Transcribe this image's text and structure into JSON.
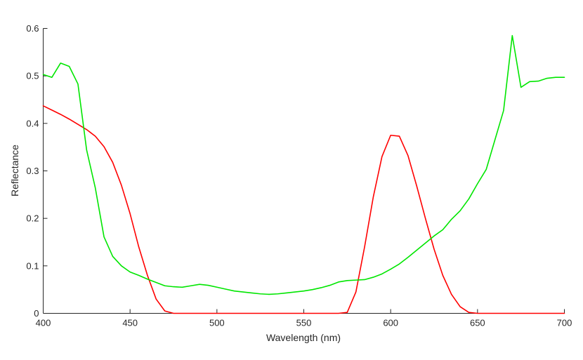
{
  "chart_data": {
    "type": "line",
    "title": "",
    "xlabel": "Wavelength (nm)",
    "ylabel": "Reflectance",
    "xlim": [
      400,
      700
    ],
    "ylim": [
      0,
      0.6
    ],
    "xticks": [
      400,
      450,
      500,
      550,
      600,
      650,
      700
    ],
    "yticks": [
      0,
      0.1,
      0.2,
      0.3,
      0.4,
      0.5,
      0.6
    ],
    "xtick_labels": [
      "400",
      "450",
      "500",
      "550",
      "600",
      "650",
      "700"
    ],
    "ytick_labels": [
      "0",
      "0.1",
      "0.2",
      "0.3",
      "0.4",
      "0.5",
      "0.6"
    ],
    "grid": false,
    "legend": "none",
    "x": [
      400,
      405,
      410,
      415,
      420,
      425,
      430,
      435,
      440,
      445,
      450,
      455,
      460,
      465,
      470,
      475,
      480,
      485,
      490,
      495,
      500,
      505,
      510,
      515,
      520,
      525,
      530,
      535,
      540,
      545,
      550,
      555,
      560,
      565,
      570,
      575,
      580,
      585,
      590,
      595,
      600,
      605,
      610,
      615,
      620,
      625,
      630,
      635,
      640,
      645,
      650,
      655,
      660,
      665,
      670,
      675,
      680,
      685,
      690,
      695,
      700
    ],
    "series": [
      {
        "color": "#ff0000",
        "values": [
          0.437,
          0.428,
          0.419,
          0.409,
          0.398,
          0.387,
          0.373,
          0.351,
          0.318,
          0.27,
          0.21,
          0.14,
          0.08,
          0.03,
          0.005,
          0,
          0,
          0,
          0,
          0,
          0,
          0,
          0,
          0,
          0,
          0,
          0,
          0,
          0,
          0,
          0,
          0,
          0,
          0,
          0,
          0.002,
          0.045,
          0.14,
          0.245,
          0.33,
          0.375,
          0.373,
          0.332,
          0.268,
          0.2,
          0.135,
          0.08,
          0.04,
          0.014,
          0.002,
          0,
          0,
          0,
          0,
          0,
          0,
          0,
          0,
          0,
          0,
          0
        ]
      },
      {
        "color": "#00e600",
        "values": [
          0.503,
          0.497,
          0.527,
          0.52,
          0.483,
          0.344,
          0.264,
          0.161,
          0.12,
          0.1,
          0.087,
          0.08,
          0.072,
          0.065,
          0.058,
          0.056,
          0.055,
          0.058,
          0.061,
          0.059,
          0.055,
          0.051,
          0.047,
          0.045,
          0.043,
          0.041,
          0.04,
          0.041,
          0.043,
          0.045,
          0.047,
          0.05,
          0.054,
          0.059,
          0.066,
          0.069,
          0.07,
          0.071,
          0.076,
          0.083,
          0.093,
          0.104,
          0.118,
          0.133,
          0.148,
          0.163,
          0.176,
          0.198,
          0.216,
          0.241,
          0.273,
          0.303,
          0.365,
          0.427,
          0.585,
          0.476,
          0.488,
          0.489,
          0.495,
          0.497,
          0.497
        ]
      }
    ]
  }
}
